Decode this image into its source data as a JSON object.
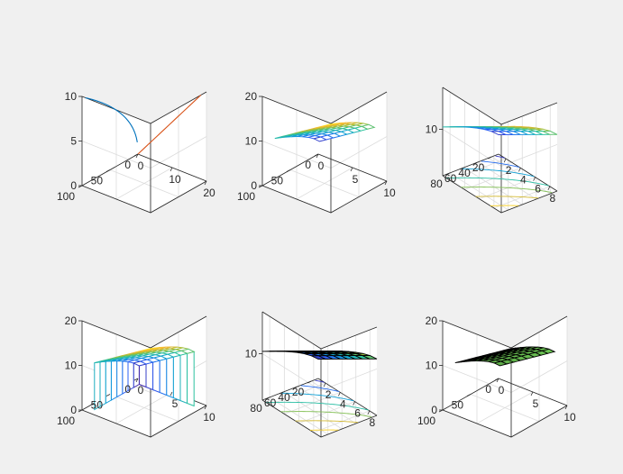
{
  "figure": {
    "background": "#f0f0f0",
    "axes_background": "#ffffff",
    "colormap": [
      "#3e26a8",
      "#2d63f7",
      "#0f9fd8",
      "#2ec39c",
      "#a5be34",
      "#fab634",
      "#f8fa0d"
    ]
  },
  "chart_data": [
    {
      "type": "line3d",
      "subplot": 1,
      "description_free": true,
      "xlim": [
        0,
        20
      ],
      "ylim": [
        0,
        100
      ],
      "zlim": [
        0,
        10
      ],
      "xticks": [
        0,
        10,
        20
      ],
      "yticks": [
        0,
        50,
        100
      ],
      "zticks": [
        0,
        5,
        10
      ],
      "xtick_labels": [
        "0",
        "10",
        "20"
      ],
      "ytick_labels": [
        "0",
        "50",
        "100"
      ],
      "ztick_labels": [
        "0",
        "5",
        "10"
      ],
      "grid": true,
      "series": [
        {
          "color": "#0072bd",
          "kind": "sqrt-curve"
        },
        {
          "color": "#d95319",
          "kind": "straight-line"
        }
      ]
    },
    {
      "type": "surface-mesh",
      "subplot": 2,
      "xlim": [
        0,
        10
      ],
      "ylim": [
        0,
        100
      ],
      "zlim": [
        0,
        20
      ],
      "xticks": [
        0,
        5,
        10
      ],
      "yticks": [
        0,
        50,
        100
      ],
      "zticks": [
        0,
        10,
        20
      ],
      "xtick_labels": [
        "0",
        "5",
        "10"
      ],
      "ytick_labels": [
        "0",
        "50",
        "100"
      ],
      "ztick_labels": [
        "0",
        "10",
        "20"
      ],
      "grid": true,
      "x": [
        1,
        2,
        3,
        4,
        5,
        6,
        7,
        8,
        9
      ],
      "y": [
        10,
        20,
        30,
        40,
        50,
        60,
        70,
        80,
        90
      ],
      "z_formula": "x + sqrt(y)"
    },
    {
      "type": "meshc",
      "subplot": 3,
      "xlim": [
        1,
        9
      ],
      "ylim": [
        10,
        90
      ],
      "zlim": [
        0,
        19
      ],
      "xticks": [
        2,
        4,
        6,
        8
      ],
      "yticks": [
        20,
        40,
        60,
        80
      ],
      "zticks": [
        10
      ],
      "xtick_labels": [
        "2",
        "4",
        "6",
        "8"
      ],
      "ytick_labels": [
        "20",
        "40",
        "60",
        "80"
      ],
      "ztick_labels": [
        "10"
      ],
      "grid": true,
      "x": [
        1,
        2,
        3,
        4,
        5,
        6,
        7,
        8,
        9
      ],
      "y": [
        10,
        20,
        30,
        40,
        50,
        60,
        70,
        80,
        90
      ],
      "z_formula": "x + sqrt(y)"
    },
    {
      "type": "meshz",
      "subplot": 4,
      "xlim": [
        0,
        10
      ],
      "ylim": [
        0,
        100
      ],
      "zlim": [
        0,
        20
      ],
      "xticks": [
        0,
        5,
        10
      ],
      "yticks": [
        0,
        50,
        100
      ],
      "zticks": [
        0,
        10,
        20
      ],
      "xtick_labels": [
        "0",
        "5",
        "10"
      ],
      "ytick_labels": [
        "0",
        "50",
        "100"
      ],
      "ztick_labels": [
        "0",
        "10",
        "20"
      ],
      "grid": true,
      "x": [
        1,
        2,
        3,
        4,
        5,
        6,
        7,
        8,
        9
      ],
      "y": [
        10,
        20,
        30,
        40,
        50,
        60,
        70,
        80,
        90
      ],
      "z_formula": "x + sqrt(y)"
    },
    {
      "type": "surfc",
      "subplot": 5,
      "xlim": [
        1,
        9
      ],
      "ylim": [
        10,
        90
      ],
      "zlim": [
        0,
        19
      ],
      "xticks": [
        2,
        4,
        6,
        8
      ],
      "yticks": [
        20,
        40,
        60,
        80
      ],
      "zticks": [
        10
      ],
      "xtick_labels": [
        "2",
        "4",
        "6",
        "8"
      ],
      "ytick_labels": [
        "20",
        "40",
        "60",
        "80"
      ],
      "ztick_labels": [
        "10"
      ],
      "grid": true,
      "x": [
        1,
        2,
        3,
        4,
        5,
        6,
        7,
        8,
        9
      ],
      "y": [
        10,
        20,
        30,
        40,
        50,
        60,
        70,
        80,
        90
      ],
      "z_formula": "x + sqrt(y)"
    },
    {
      "type": "surface-solid",
      "subplot": 6,
      "xlim": [
        0,
        10
      ],
      "ylim": [
        0,
        100
      ],
      "zlim": [
        0,
        20
      ],
      "xticks": [
        0,
        5,
        10
      ],
      "yticks": [
        0,
        50,
        100
      ],
      "zticks": [
        0,
        10,
        20
      ],
      "xtick_labels": [
        "0",
        "5",
        "10"
      ],
      "ytick_labels": [
        "0",
        "50",
        "100"
      ],
      "ztick_labels": [
        "0",
        "10",
        "20"
      ],
      "grid": true,
      "face_color": "#66bb4f",
      "x": [
        1,
        2,
        3,
        4,
        5,
        6,
        7,
        8,
        9
      ],
      "y": [
        10,
        20,
        30,
        40,
        50,
        60,
        70,
        80,
        90
      ],
      "z_formula": "x + sqrt(y)"
    }
  ]
}
